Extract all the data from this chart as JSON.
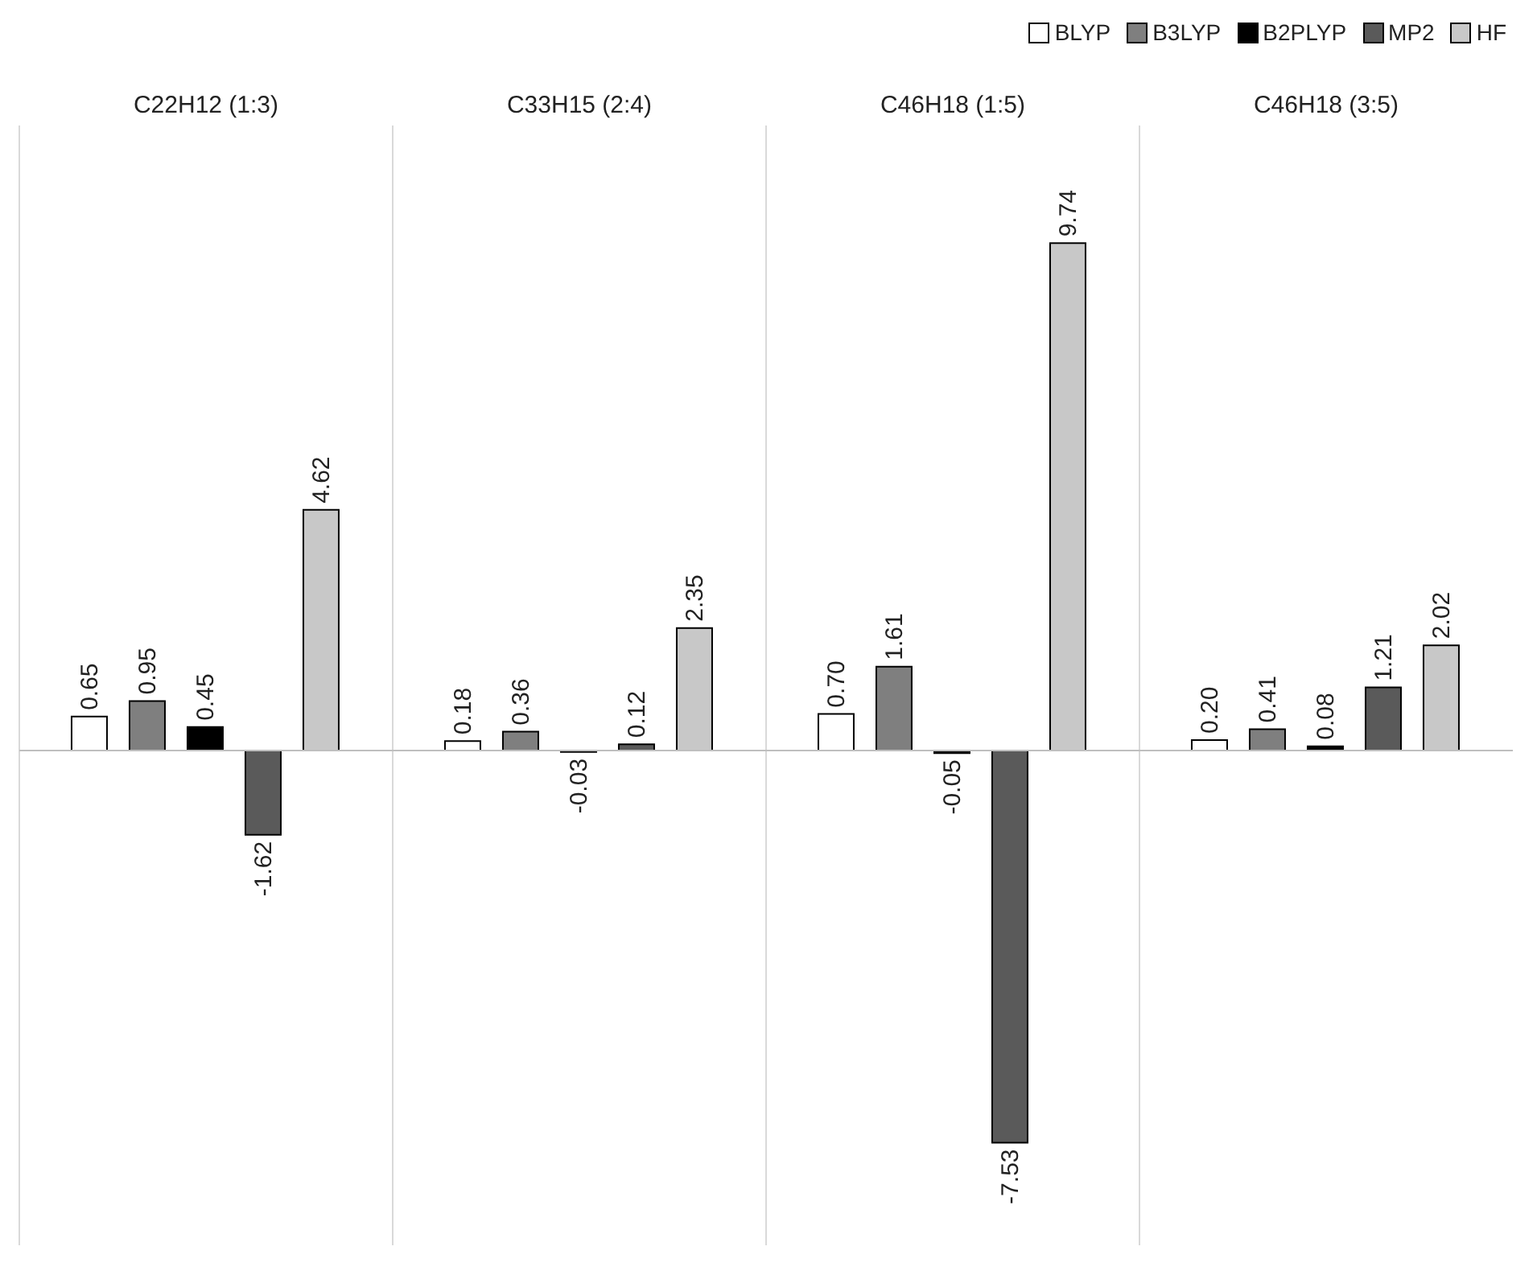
{
  "chart_data": {
    "type": "bar",
    "categories": [
      "C22H12 (1:3)",
      "C33H15 (2:4)",
      "C46H18 (1:5)",
      "C46H18 (3:5)"
    ],
    "series": [
      {
        "name": "BLYP",
        "color": "#ffffff",
        "values": [
          0.65,
          0.18,
          0.7,
          0.2
        ],
        "value_labels": [
          "0.65",
          "0.18",
          "0.70",
          "0.20"
        ]
      },
      {
        "name": "B3LYP",
        "color": "#7f7f7f",
        "values": [
          0.95,
          0.36,
          1.61,
          0.41
        ],
        "value_labels": [
          "0.95",
          "0.36",
          "1.61",
          "0.41"
        ]
      },
      {
        "name": "B2PLYP",
        "color": "#000000",
        "values": [
          0.45,
          -0.03,
          -0.05,
          0.08
        ],
        "value_labels": [
          "0.45",
          "-0.03",
          "-0.05",
          "0.08"
        ]
      },
      {
        "name": "MP2",
        "color": "#5a5a5a",
        "values": [
          -1.62,
          0.12,
          -7.53,
          1.21
        ],
        "value_labels": [
          "-1.62",
          "0.12",
          "-7.53",
          "1.21"
        ]
      },
      {
        "name": "HF",
        "color": "#c8c8c8",
        "values": [
          4.62,
          2.35,
          9.74,
          2.02
        ],
        "value_labels": [
          "4.62",
          "2.35",
          "9.74",
          "2.02"
        ]
      }
    ],
    "ylim": [
      -9.5,
      12
    ],
    "grid": "x",
    "legend": "top right"
  }
}
